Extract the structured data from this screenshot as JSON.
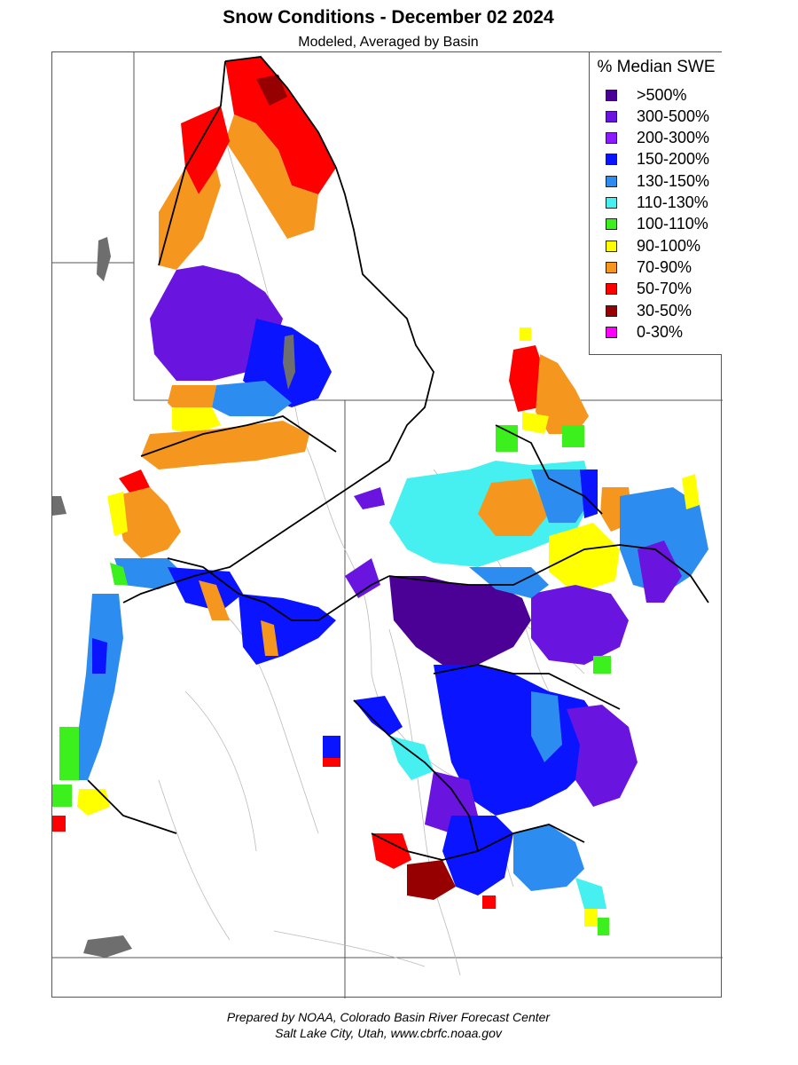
{
  "title": "Snow Conditions - December 02 2024",
  "subtitle": "Modeled, Averaged by Basin",
  "legend": {
    "title": "% Median SWE",
    "items": [
      {
        "label": ">500%",
        "color": "#4b0096"
      },
      {
        "label": "300-500%",
        "color": "#6a14e0"
      },
      {
        "label": "200-300%",
        "color": "#8a1cff"
      },
      {
        "label": "150-200%",
        "color": "#0a14ff"
      },
      {
        "label": "130-150%",
        "color": "#2d8cf0"
      },
      {
        "label": "110-130%",
        "color": "#46f0f0"
      },
      {
        "label": "100-110%",
        "color": "#3cf01e"
      },
      {
        "label": "90-100%",
        "color": "#ffff00"
      },
      {
        "label": "70-90%",
        "color": "#f5961e"
      },
      {
        "label": "50-70%",
        "color": "#ff0000"
      },
      {
        "label": "30-50%",
        "color": "#960000"
      },
      {
        "label": "0-30%",
        "color": "#ff00ff"
      }
    ]
  },
  "footer": {
    "line1": "Prepared by NOAA, Colorado Basin River Forecast Center",
    "line2": "Salt Lake City, Utah, www.cbrfc.noaa.gov"
  }
}
